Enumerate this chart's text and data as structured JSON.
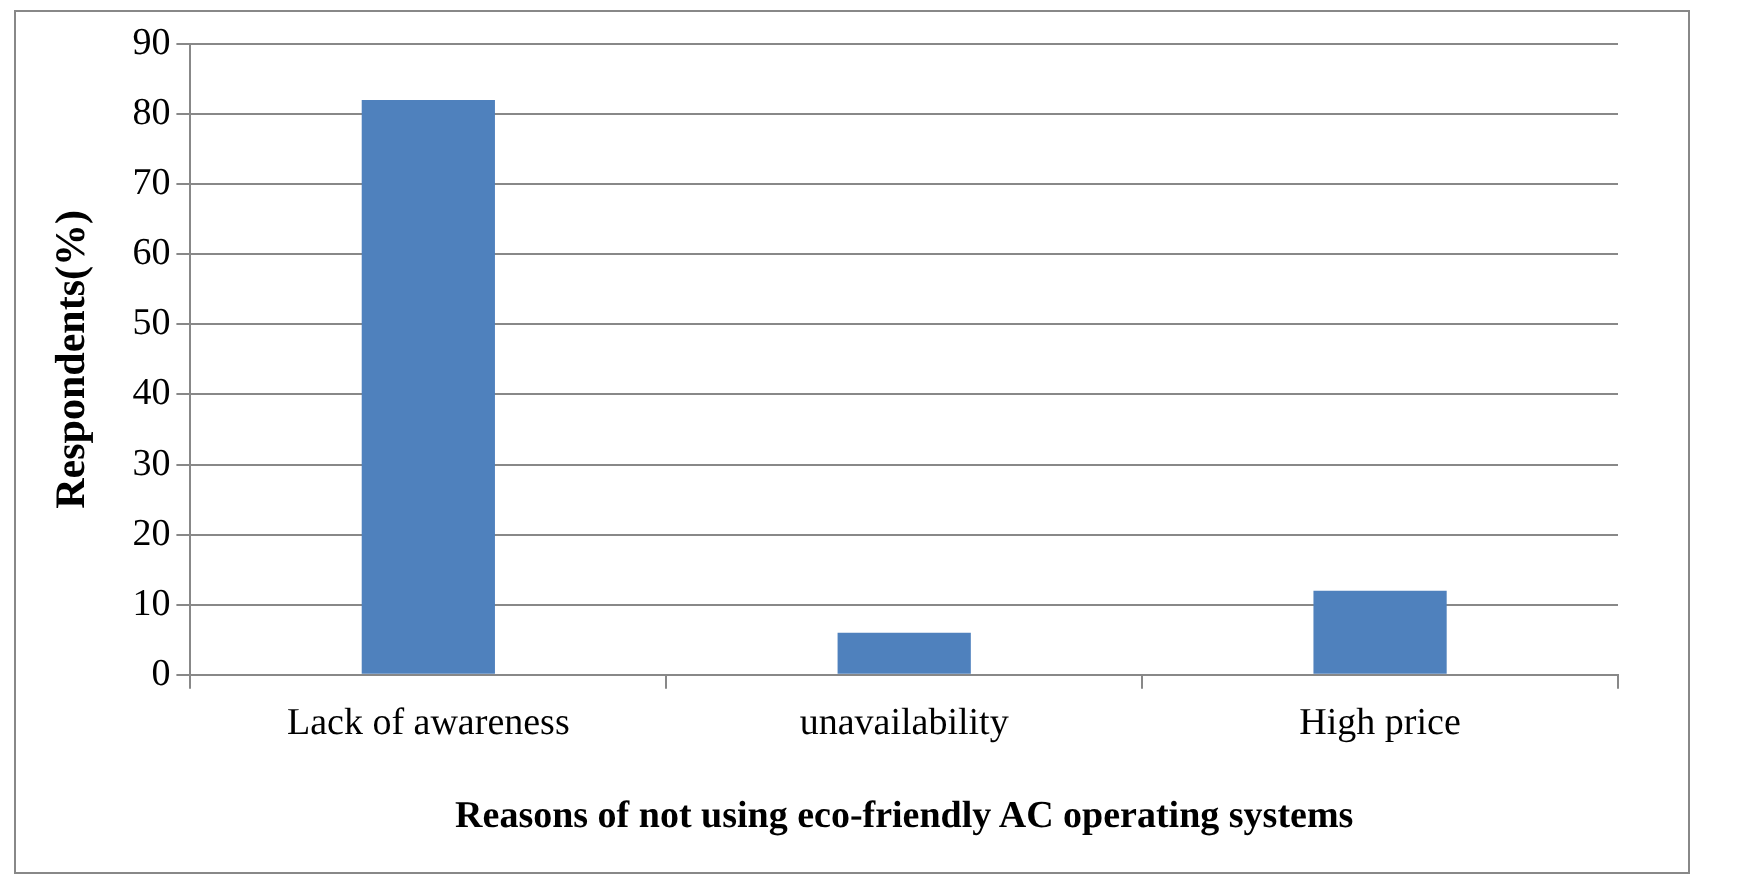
{
  "chart_data": {
    "type": "bar",
    "xlabel": "Reasons of not using eco-friendly AC operating systems",
    "ylabel": "Respondents(%)",
    "categories": [
      "Lack of awareness",
      "unavailability",
      "High price"
    ],
    "values": [
      82,
      6,
      12
    ],
    "color": "#4f81bd",
    "ylim": [
      0,
      90
    ],
    "yticks": [
      0,
      10,
      20,
      30,
      40,
      50,
      60,
      70,
      80,
      90
    ],
    "grid": "y",
    "legend": false
  }
}
